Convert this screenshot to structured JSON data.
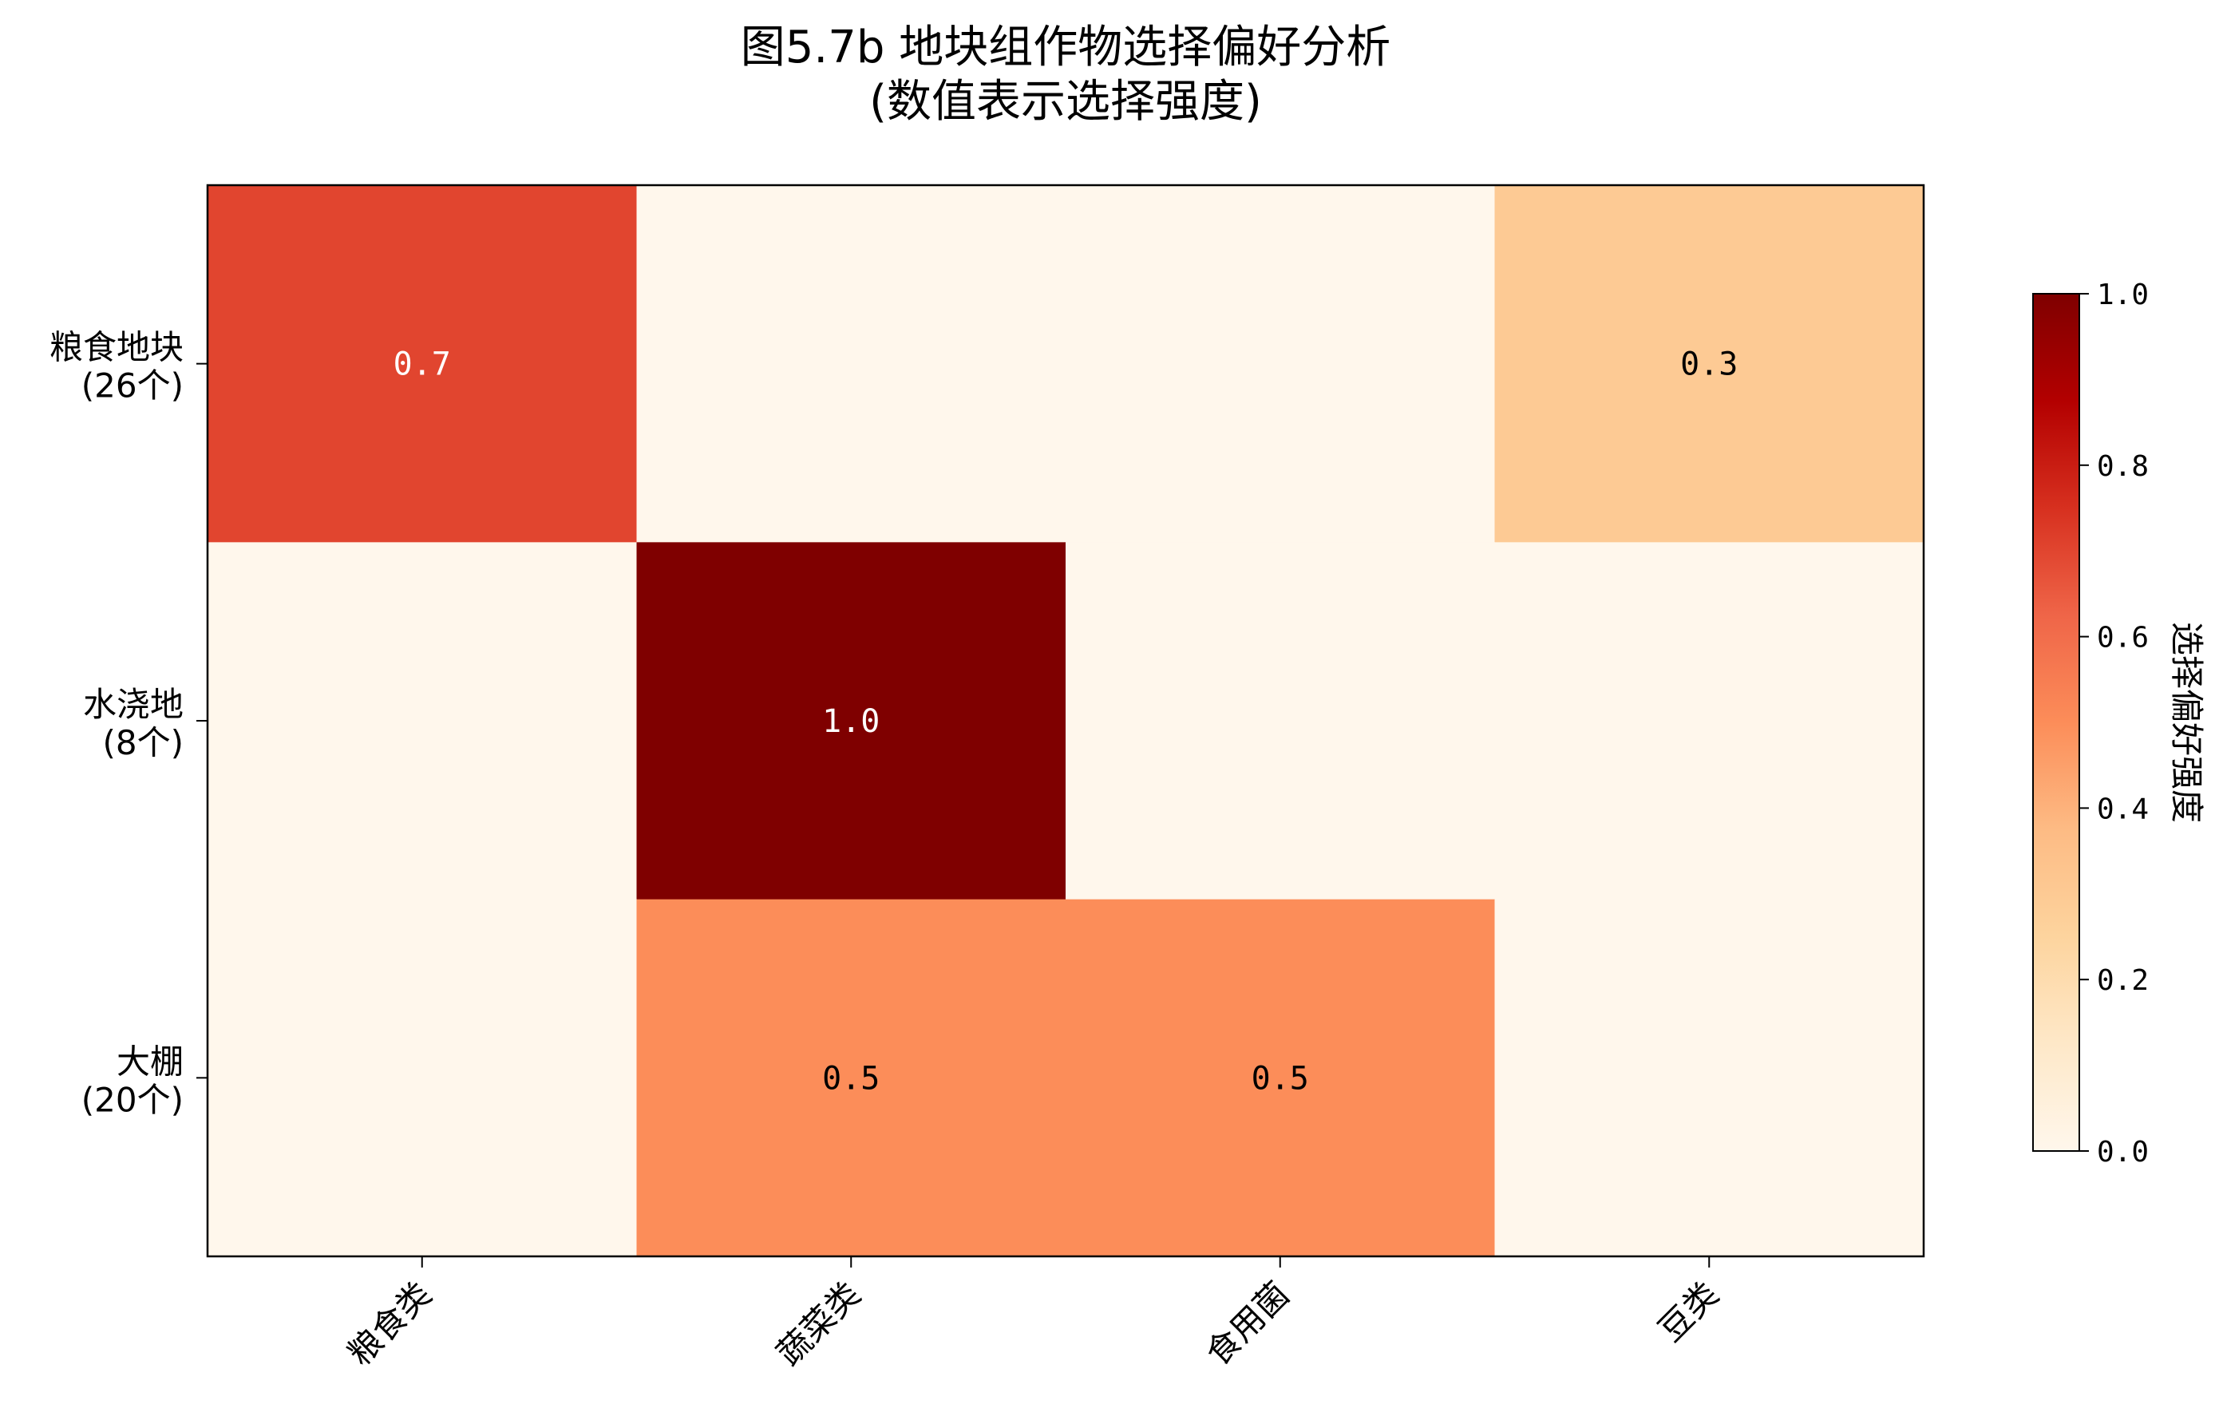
{
  "chart_data": {
    "type": "heatmap",
    "title": "图5.7b 地块组作物选择偏好分析",
    "subtitle": "(数值表示选择强度)",
    "x_categories": [
      "粮食类",
      "蔬菜类",
      "食用菌",
      "豆类"
    ],
    "y_categories": [
      {
        "name": "粮食地块",
        "count": "(26个)"
      },
      {
        "name": "水浇地",
        "count": "(8个)"
      },
      {
        "name": "大棚",
        "count": "(20个)"
      }
    ],
    "values": [
      [
        0.7,
        0.0,
        0.0,
        0.3
      ],
      [
        0.0,
        1.0,
        0.0,
        0.0
      ],
      [
        0.0,
        0.5,
        0.5,
        0.0
      ]
    ],
    "cell_labels": [
      [
        "0.7",
        "",
        "",
        "0.3"
      ],
      [
        "",
        "1.0",
        "",
        ""
      ],
      [
        "",
        "0.5",
        "0.5",
        ""
      ]
    ],
    "colormap": "OrRd",
    "colormap_stops": [
      "#fff7ec",
      "#fee8c8",
      "#fdd49e",
      "#fdbb84",
      "#fc8d59",
      "#ef6548",
      "#d7301f",
      "#b30000",
      "#7f0000"
    ],
    "vmin": 0.0,
    "vmax": 1.0,
    "colorbar": {
      "label": "选择偏好强度",
      "ticks": [
        0.0,
        0.2,
        0.4,
        0.6,
        0.8,
        1.0
      ],
      "tick_labels": [
        "0.0",
        "0.2",
        "0.4",
        "0.6",
        "0.8",
        "1.0"
      ]
    },
    "legend": "right"
  }
}
